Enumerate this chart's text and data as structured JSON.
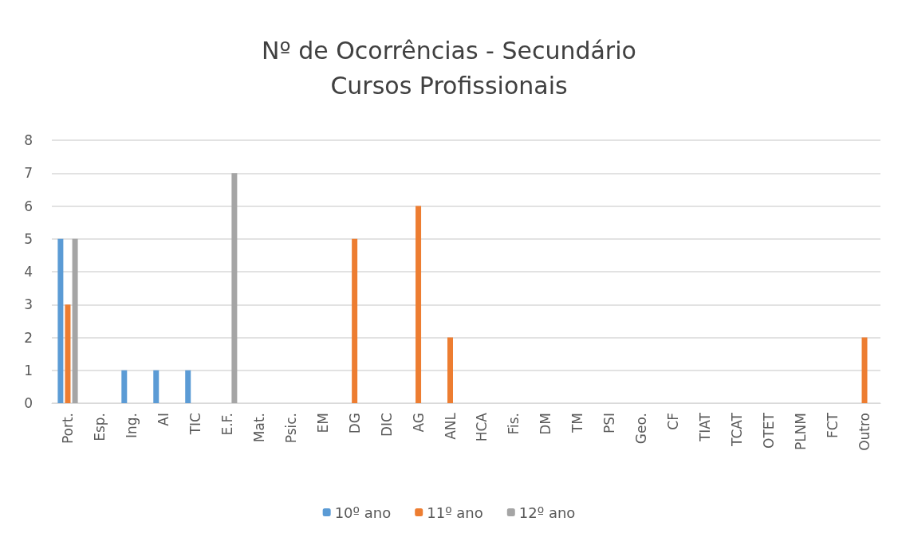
{
  "chart_data": {
    "type": "bar",
    "title": "Nº de Ocorrências - Secundário\nCursos Profissionais",
    "categories": [
      "Port.",
      "Esp.",
      "Ing.",
      "AI",
      "TIC",
      "E.F.",
      "Mat.",
      "Psic.",
      "EM",
      "DG",
      "DIC",
      "AG",
      "ANL",
      "HCA",
      "Fis.",
      "DM",
      "TM",
      "PSI",
      "Geo.",
      "CF",
      "TIAT",
      "TCAT",
      "OTET",
      "PLNM",
      "FCT",
      "Outro"
    ],
    "series": [
      {
        "name": "10º ano",
        "color": "#5b9bd5",
        "values": [
          5,
          0,
          1,
          1,
          1,
          0,
          0,
          0,
          0,
          0,
          0,
          0,
          0,
          0,
          0,
          0,
          0,
          0,
          0,
          0,
          0,
          0,
          0,
          0,
          0,
          0
        ]
      },
      {
        "name": "11º ano",
        "color": "#ed7d31",
        "values": [
          3,
          0,
          0,
          0,
          0,
          0,
          0,
          0,
          0,
          5,
          0,
          6,
          2,
          0,
          0,
          0,
          0,
          0,
          0,
          0,
          0,
          0,
          0,
          0,
          0,
          2
        ]
      },
      {
        "name": "12º ano",
        "color": "#a5a5a5",
        "values": [
          5,
          0,
          0,
          0,
          0,
          7,
          0,
          0,
          0,
          0,
          0,
          0,
          0,
          0,
          0,
          0,
          0,
          0,
          0,
          0,
          0,
          0,
          0,
          0,
          0,
          0
        ]
      }
    ],
    "ylim": [
      0,
      8
    ],
    "yticks": [
      0,
      1,
      2,
      3,
      4,
      5,
      6,
      7,
      8
    ],
    "grid": "y",
    "legend": "bottom"
  }
}
